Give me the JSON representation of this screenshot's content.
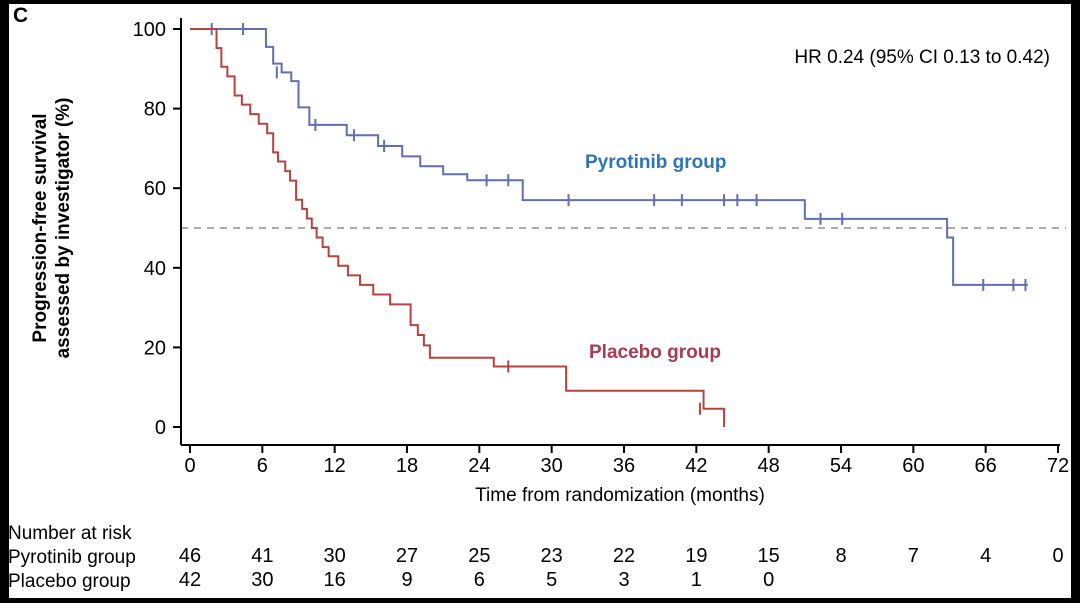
{
  "panel_label": "C",
  "chart_data": {
    "type": "line",
    "subtype": "kaplan-meier-step",
    "title": "",
    "xlabel": "Time from randomization (months)",
    "ylabel": "Progression-free survival assessed by investigator (%)",
    "ylabel_lines": [
      "Progression-free survival",
      "assessed by investigator (%)"
    ],
    "xlim": [
      0,
      72
    ],
    "ylim": [
      0,
      100
    ],
    "x_ticks": [
      0,
      6,
      12,
      18,
      24,
      30,
      36,
      42,
      48,
      54,
      60,
      66,
      72
    ],
    "y_ticks": [
      0,
      20,
      40,
      60,
      80,
      100
    ],
    "grid": false,
    "legend_position": "inline-labels",
    "reference_line": {
      "y": 50,
      "style": "dashed",
      "color": "#909090"
    },
    "annotation": "HR 0.24 (95% CI 0.13 to 0.42)",
    "series": [
      {
        "name": "Pyrotinib group",
        "color": "#5e6fb3",
        "label_color": "#2e74b6",
        "steps": [
          [
            0,
            100
          ],
          [
            6.3,
            95.5
          ],
          [
            6.9,
            91.3
          ],
          [
            7.6,
            89.1
          ],
          [
            8.4,
            86.9
          ],
          [
            9.0,
            80.3
          ],
          [
            9.9,
            75.9
          ],
          [
            13.0,
            73.3
          ],
          [
            15.6,
            70.6
          ],
          [
            17.6,
            68.0
          ],
          [
            19.1,
            65.5
          ],
          [
            21.0,
            63.5
          ],
          [
            23.0,
            62.0
          ],
          [
            27.6,
            57.0
          ],
          [
            51.0,
            52.3
          ],
          [
            62.8,
            47.6
          ],
          [
            63.3,
            35.7
          ],
          [
            69.5,
            35.7
          ]
        ],
        "censors": [
          [
            1.8,
            100
          ],
          [
            4.4,
            100
          ],
          [
            7.2,
            89.1
          ],
          [
            10.4,
            75.9
          ],
          [
            13.6,
            73.3
          ],
          [
            16.1,
            70.6
          ],
          [
            24.6,
            62.0
          ],
          [
            26.4,
            62.0
          ],
          [
            31.4,
            57.0
          ],
          [
            38.5,
            57.0
          ],
          [
            40.8,
            57.0
          ],
          [
            44.3,
            57.0
          ],
          [
            45.4,
            57.0
          ],
          [
            47.0,
            57.0
          ],
          [
            52.3,
            52.3
          ],
          [
            54.1,
            52.3
          ],
          [
            65.8,
            35.7
          ],
          [
            68.3,
            35.7
          ],
          [
            69.3,
            35.7
          ]
        ]
      },
      {
        "name": "Placebo group",
        "color": "#b5443f",
        "label_color": "#a93a52",
        "steps": [
          [
            0,
            100
          ],
          [
            2.2,
            95.2
          ],
          [
            2.6,
            90.5
          ],
          [
            3.1,
            88.1
          ],
          [
            3.7,
            83.3
          ],
          [
            4.3,
            81.0
          ],
          [
            5.0,
            78.6
          ],
          [
            5.7,
            76.2
          ],
          [
            6.4,
            73.8
          ],
          [
            6.9,
            69.0
          ],
          [
            7.3,
            66.7
          ],
          [
            7.9,
            64.3
          ],
          [
            8.3,
            61.9
          ],
          [
            8.8,
            57.1
          ],
          [
            9.3,
            54.8
          ],
          [
            9.7,
            52.4
          ],
          [
            10.1,
            50.0
          ],
          [
            10.5,
            47.6
          ],
          [
            11.0,
            45.2
          ],
          [
            11.5,
            42.9
          ],
          [
            12.3,
            40.5
          ],
          [
            13.1,
            38.1
          ],
          [
            14.1,
            35.7
          ],
          [
            15.2,
            33.3
          ],
          [
            16.6,
            30.8
          ],
          [
            18.3,
            25.6
          ],
          [
            18.9,
            23.1
          ],
          [
            19.4,
            20.5
          ],
          [
            19.9,
            17.4
          ],
          [
            25.2,
            15.2
          ],
          [
            31.2,
            9.1
          ],
          [
            42.6,
            4.6
          ],
          [
            44.3,
            0
          ]
        ],
        "censors": [
          [
            26.4,
            15.2
          ],
          [
            42.3,
            4.6
          ]
        ]
      }
    ]
  },
  "risk_table": {
    "title": "Number at risk",
    "times": [
      0,
      6,
      12,
      18,
      24,
      30,
      36,
      42,
      48,
      54,
      60,
      66,
      72
    ],
    "rows": [
      {
        "label": "Pyrotinib group",
        "counts": [
          46,
          41,
          30,
          27,
          25,
          23,
          22,
          19,
          15,
          8,
          7,
          4,
          0
        ]
      },
      {
        "label": "Placebo group",
        "counts": [
          42,
          30,
          16,
          9,
          6,
          5,
          3,
          1,
          0
        ]
      }
    ]
  }
}
